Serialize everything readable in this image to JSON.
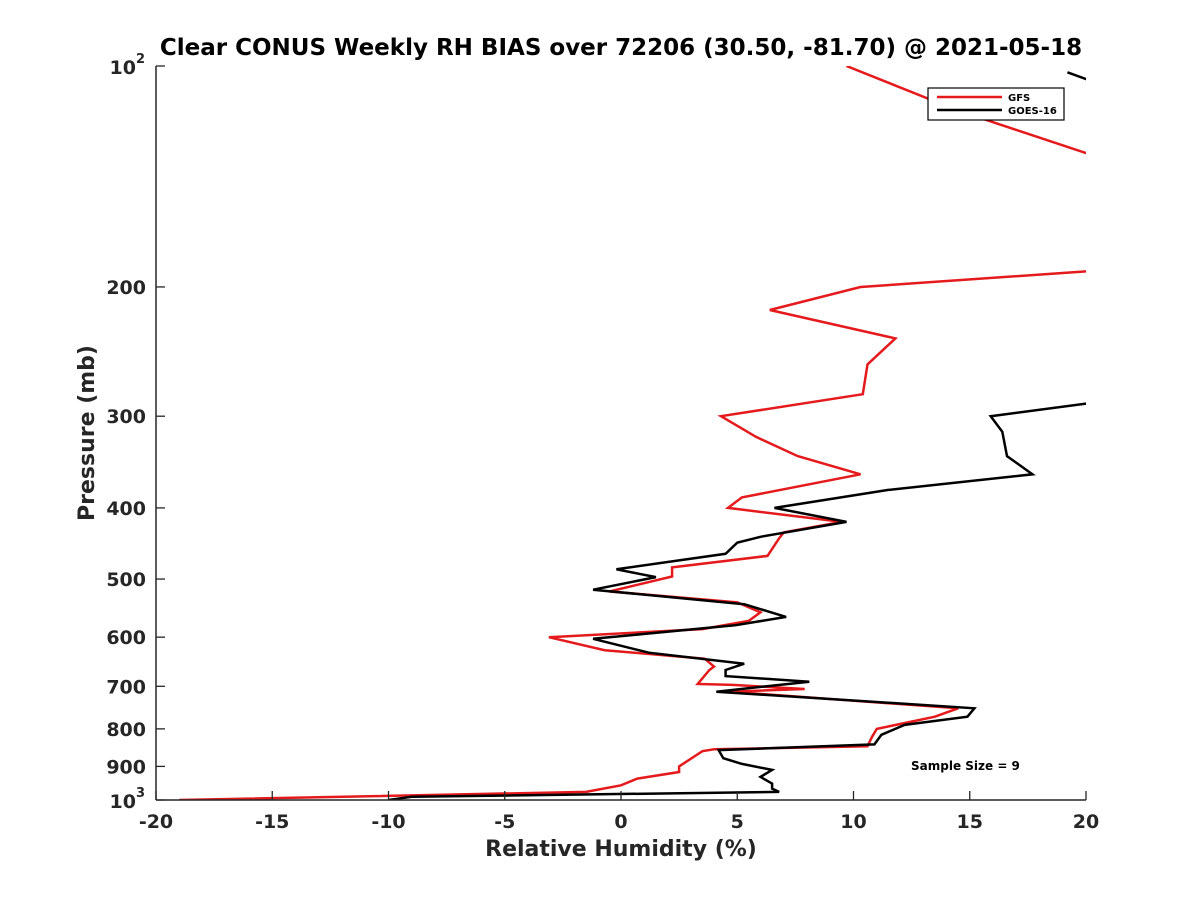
{
  "chart_data": {
    "type": "line",
    "title": "Clear CONUS Weekly RH BIAS over 72206 (30.50, -81.70) @ 2021-05-18",
    "xlabel": "Relative Humidity (%)",
    "ylabel": "Pressure (mb)",
    "xlim": [
      -20,
      20
    ],
    "ylim": [
      100,
      1000
    ],
    "y_scale": "log",
    "y_reversed": true,
    "grid": false,
    "legend_position": "top-right",
    "x_ticks": [
      -20,
      -15,
      -10,
      -5,
      0,
      5,
      10,
      15,
      20
    ],
    "x_tick_labels": [
      "-20",
      "-15",
      "-10",
      "-5",
      "0",
      "5",
      "10",
      "15",
      "20"
    ],
    "y_ticks": [
      {
        "value": 100,
        "base": "10",
        "exp": "2"
      },
      {
        "value": 200,
        "label": "200"
      },
      {
        "value": 300,
        "label": "300"
      },
      {
        "value": 400,
        "label": "400"
      },
      {
        "value": 500,
        "label": "500"
      },
      {
        "value": 600,
        "label": "600"
      },
      {
        "value": 700,
        "label": "700"
      },
      {
        "value": 800,
        "label": "800"
      },
      {
        "value": 900,
        "label": "900"
      },
      {
        "value": 1000,
        "base": "10",
        "exp": "3"
      }
    ],
    "annotation": "Sample Size = 9",
    "series": [
      {
        "name": "GFS",
        "color": "#e41a1c",
        "points": [
          [
            9.7,
            100
          ],
          [
            14.5,
            115
          ],
          [
            20.5,
            133
          ],
          [
            20.5,
            190
          ],
          [
            10.3,
            200
          ],
          [
            6.4,
            215
          ],
          [
            11.8,
            235
          ],
          [
            10.6,
            255
          ],
          [
            10.4,
            280
          ],
          [
            4.3,
            300
          ],
          [
            5.8,
            320
          ],
          [
            7.6,
            340
          ],
          [
            10.3,
            360
          ],
          [
            5.2,
            387
          ],
          [
            4.6,
            400
          ],
          [
            9.5,
            418
          ],
          [
            7.0,
            432
          ],
          [
            6.8,
            440
          ],
          [
            6.3,
            465
          ],
          [
            2.2,
            482
          ],
          [
            2.2,
            496
          ],
          [
            -0.5,
            520
          ],
          [
            5.0,
            538
          ],
          [
            6.0,
            555
          ],
          [
            5.5,
            570
          ],
          [
            3.5,
            585
          ],
          [
            -3.1,
            600
          ],
          [
            -0.7,
            625
          ],
          [
            3.6,
            642
          ],
          [
            4.0,
            658
          ],
          [
            3.8,
            665
          ],
          [
            3.3,
            695
          ],
          [
            4.8,
            697
          ],
          [
            7.9,
            706
          ],
          [
            4.7,
            712
          ],
          [
            14.5,
            750
          ],
          [
            13.5,
            770
          ],
          [
            11.0,
            800
          ],
          [
            10.8,
            820
          ],
          [
            10.6,
            845
          ],
          [
            4.0,
            853
          ],
          [
            3.5,
            858
          ],
          [
            2.5,
            900
          ],
          [
            2.5,
            916
          ],
          [
            0.7,
            935
          ],
          [
            0.0,
            955
          ],
          [
            -1.5,
            975
          ],
          [
            -19.0,
            1000
          ]
        ]
      },
      {
        "name": "GOES-16",
        "color": "#000000",
        "points": [
          [
            19.2,
            102
          ],
          [
            20.3,
            105
          ],
          [
            20.5,
            287
          ],
          [
            15.9,
            300
          ],
          [
            16.4,
            315
          ],
          [
            16.6,
            340
          ],
          [
            17.7,
            360
          ],
          [
            11.5,
            378
          ],
          [
            6.6,
            400
          ],
          [
            9.7,
            418
          ],
          [
            6.0,
            438
          ],
          [
            5.0,
            446
          ],
          [
            4.5,
            462
          ],
          [
            -0.2,
            485
          ],
          [
            1.5,
            497
          ],
          [
            -1.2,
            517
          ],
          [
            5.3,
            541
          ],
          [
            7.1,
            563
          ],
          [
            4.9,
            578
          ],
          [
            -1.2,
            603
          ],
          [
            1.2,
            630
          ],
          [
            5.3,
            652
          ],
          [
            4.5,
            665
          ],
          [
            4.5,
            678
          ],
          [
            8.1,
            690
          ],
          [
            4.1,
            712
          ],
          [
            15.2,
            750
          ],
          [
            14.9,
            770
          ],
          [
            12.2,
            790
          ],
          [
            11.2,
            815
          ],
          [
            10.9,
            840
          ],
          [
            4.2,
            855
          ],
          [
            4.4,
            877
          ],
          [
            5.2,
            893
          ],
          [
            6.5,
            910
          ],
          [
            6.0,
            930
          ],
          [
            6.5,
            950
          ],
          [
            6.5,
            965
          ],
          [
            6.8,
            975
          ],
          [
            -9.0,
            990
          ],
          [
            -10.0,
            1000
          ]
        ]
      }
    ]
  }
}
